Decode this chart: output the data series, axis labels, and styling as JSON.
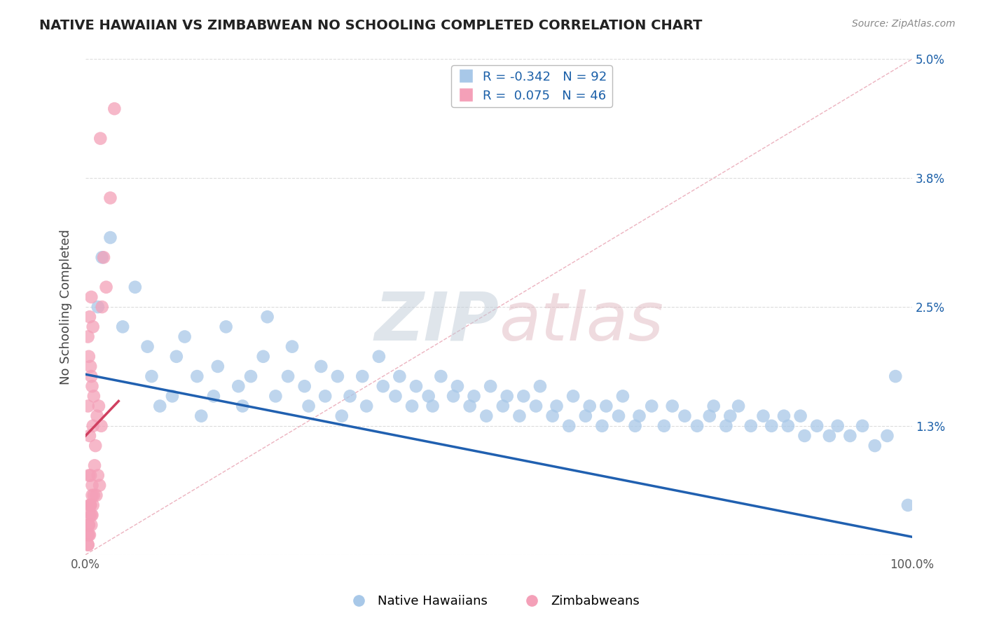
{
  "title": "NATIVE HAWAIIAN VS ZIMBABWEAN NO SCHOOLING COMPLETED CORRELATION CHART",
  "source_text": "Source: ZipAtlas.com",
  "ylabel": "No Schooling Completed",
  "xlim": [
    0,
    100
  ],
  "ylim": [
    0,
    5.0
  ],
  "yticks": [
    0,
    1.3,
    2.5,
    3.8,
    5.0
  ],
  "ytick_labels_right": [
    "",
    "1.3%",
    "2.5%",
    "3.8%",
    "5.0%"
  ],
  "xtick_labels": [
    "0.0%",
    "100.0%"
  ],
  "blue_R": -0.342,
  "blue_N": 92,
  "pink_R": 0.075,
  "pink_N": 46,
  "blue_color": "#a8c8e8",
  "pink_color": "#f4a0b8",
  "blue_line_color": "#2060b0",
  "pink_line_color": "#d04060",
  "diag_line_color": "#e8a0b0",
  "watermark_zip_color": "#c0ccd8",
  "watermark_atlas_color": "#e0b8c0",
  "background_color": "#ffffff",
  "grid_color": "#dddddd",
  "title_color": "#222222",
  "legend_text_color": "#1a5fa8",
  "blue_scatter_x": [
    1.5,
    2.0,
    3.0,
    4.5,
    6.0,
    7.5,
    8.0,
    9.0,
    10.5,
    11.0,
    12.0,
    13.5,
    14.0,
    15.5,
    16.0,
    17.0,
    18.5,
    19.0,
    20.0,
    21.5,
    22.0,
    23.0,
    24.5,
    25.0,
    26.5,
    27.0,
    28.5,
    29.0,
    30.5,
    31.0,
    32.0,
    33.5,
    34.0,
    35.5,
    36.0,
    37.5,
    38.0,
    39.5,
    40.0,
    41.5,
    42.0,
    43.0,
    44.5,
    45.0,
    46.5,
    47.0,
    48.5,
    49.0,
    50.5,
    51.0,
    52.5,
    53.0,
    54.5,
    55.0,
    56.5,
    57.0,
    58.5,
    59.0,
    60.5,
    61.0,
    62.5,
    63.0,
    64.5,
    65.0,
    66.5,
    67.0,
    68.5,
    70.0,
    71.0,
    72.5,
    74.0,
    75.5,
    76.0,
    77.5,
    78.0,
    79.0,
    80.5,
    82.0,
    83.0,
    84.5,
    85.0,
    86.5,
    87.0,
    88.5,
    90.0,
    91.0,
    92.5,
    94.0,
    95.5,
    97.0,
    98.0,
    99.5
  ],
  "blue_scatter_y": [
    2.5,
    3.0,
    3.2,
    2.3,
    2.7,
    2.1,
    1.8,
    1.5,
    1.6,
    2.0,
    2.2,
    1.8,
    1.4,
    1.6,
    1.9,
    2.3,
    1.7,
    1.5,
    1.8,
    2.0,
    2.4,
    1.6,
    1.8,
    2.1,
    1.7,
    1.5,
    1.9,
    1.6,
    1.8,
    1.4,
    1.6,
    1.8,
    1.5,
    2.0,
    1.7,
    1.6,
    1.8,
    1.5,
    1.7,
    1.6,
    1.5,
    1.8,
    1.6,
    1.7,
    1.5,
    1.6,
    1.4,
    1.7,
    1.5,
    1.6,
    1.4,
    1.6,
    1.5,
    1.7,
    1.4,
    1.5,
    1.3,
    1.6,
    1.4,
    1.5,
    1.3,
    1.5,
    1.4,
    1.6,
    1.3,
    1.4,
    1.5,
    1.3,
    1.5,
    1.4,
    1.3,
    1.4,
    1.5,
    1.3,
    1.4,
    1.5,
    1.3,
    1.4,
    1.3,
    1.4,
    1.3,
    1.4,
    1.2,
    1.3,
    1.2,
    1.3,
    1.2,
    1.3,
    1.1,
    1.2,
    1.8,
    0.5
  ],
  "pink_scatter_x": [
    0.3,
    0.4,
    0.5,
    0.6,
    0.7,
    0.8,
    0.9,
    1.0,
    1.1,
    1.2,
    1.3,
    1.4,
    1.5,
    1.6,
    1.7,
    1.8,
    1.9,
    2.0,
    2.2,
    2.5,
    3.0,
    3.5,
    0.3,
    0.4,
    0.5,
    0.6,
    0.7,
    0.8,
    0.9,
    0.5,
    0.6,
    0.7,
    0.8,
    0.4,
    0.5,
    0.6,
    0.7,
    0.8,
    0.9,
    1.0,
    0.3,
    0.4,
    0.5,
    0.3,
    0.4,
    0.3
  ],
  "pink_scatter_y": [
    1.5,
    0.8,
    1.2,
    0.5,
    1.8,
    0.7,
    1.3,
    1.6,
    0.9,
    1.1,
    0.6,
    1.4,
    0.8,
    1.5,
    0.7,
    4.2,
    1.3,
    2.5,
    3.0,
    2.7,
    3.6,
    4.5,
    2.2,
    2.0,
    2.4,
    1.9,
    2.6,
    1.7,
    2.3,
    0.5,
    0.8,
    0.4,
    0.6,
    0.3,
    0.4,
    0.5,
    0.3,
    0.4,
    0.5,
    0.6,
    0.2,
    0.3,
    0.2,
    0.1,
    0.2,
    0.1
  ],
  "blue_trend_x0": 0,
  "blue_trend_x1": 100,
  "blue_trend_y0": 1.82,
  "blue_trend_y1": 0.18,
  "pink_trend_x0": 0,
  "pink_trend_x1": 4.0,
  "pink_trend_y0": 1.2,
  "pink_trend_y1": 1.55
}
